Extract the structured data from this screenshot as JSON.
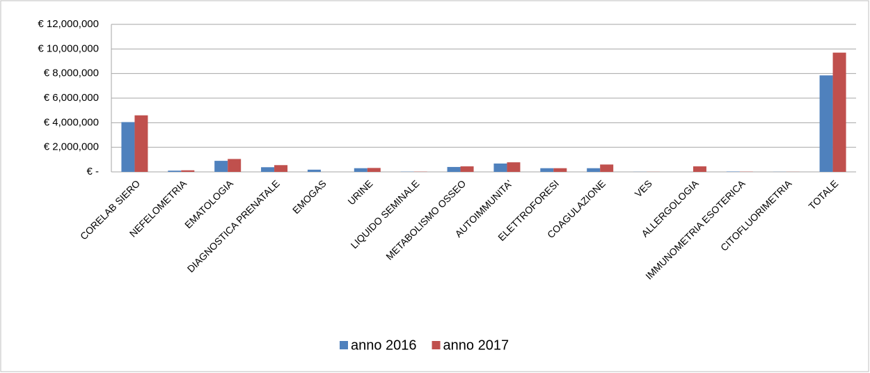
{
  "chart_data": {
    "type": "bar",
    "categories": [
      "CORELAB SIERO",
      "NEFELOMETRIA",
      "EMATOLOGIA",
      "DIAGNOSTICA PRENATALE",
      "EMOGAS",
      "URINE",
      "LIQUIDO SEMINALE",
      "METABOLISMO OSSEO",
      "AUTOIMMUNITA'",
      "ELETTROFORESI",
      "COAGULAZIONE",
      "VES",
      "ALLERGOLOGIA",
      "IMMUNOMETRIA ESOTERICA",
      "CITOFLUORIMETRIA",
      "TOTALE"
    ],
    "series": [
      {
        "name": "anno 2016",
        "color": "#4f81bd",
        "values": [
          4050000,
          100000,
          900000,
          380000,
          180000,
          300000,
          20000,
          400000,
          680000,
          300000,
          300000,
          10000,
          0,
          30000,
          10000,
          7850000
        ]
      },
      {
        "name": "anno 2017",
        "color": "#c0504d",
        "values": [
          4600000,
          130000,
          1050000,
          550000,
          0,
          320000,
          20000,
          450000,
          780000,
          300000,
          600000,
          10000,
          450000,
          20000,
          10000,
          9700000
        ]
      }
    ],
    "ylim": [
      0,
      12000000
    ],
    "yticks": [
      {
        "value": 0,
        "label": "€ -"
      },
      {
        "value": 2000000,
        "label": "€ 2,000,000"
      },
      {
        "value": 4000000,
        "label": "€ 4,000,000"
      },
      {
        "value": 6000000,
        "label": "€ 6,000,000"
      },
      {
        "value": 8000000,
        "label": "€ 8,000,000"
      },
      {
        "value": 10000000,
        "label": "€ 10,000,000"
      },
      {
        "value": 12000000,
        "label": "€ 12,000,000"
      }
    ],
    "grid": true,
    "legend": "bottom"
  }
}
